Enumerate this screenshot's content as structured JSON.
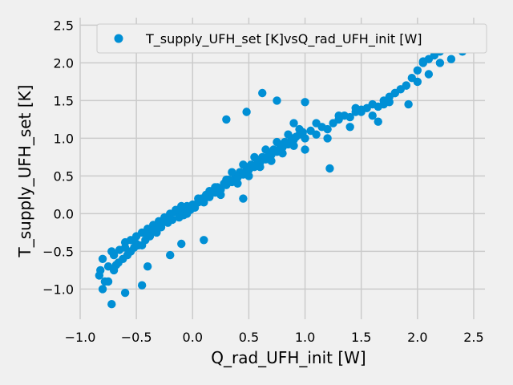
{
  "chart_data": {
    "type": "scatter",
    "title": "",
    "xlabel": "Q_rad_UFH_init [W]",
    "ylabel": "T_supply_UFH_set [K]",
    "xlim": [
      -1.0,
      2.6
    ],
    "ylim": [
      -1.4,
      2.6
    ],
    "xticks": [
      -1.0,
      -0.5,
      0.0,
      0.5,
      1.0,
      1.5,
      2.0,
      2.5
    ],
    "xtick_labels": [
      "−1.0",
      "−0.5",
      "0.0",
      "0.5",
      "1.0",
      "1.5",
      "2.0",
      "2.5"
    ],
    "yticks": [
      -1.0,
      -0.5,
      0.0,
      0.5,
      1.0,
      1.5,
      2.0,
      2.5
    ],
    "ytick_labels": [
      "−1.0",
      "−0.5",
      "0.0",
      "0.5",
      "1.0",
      "1.5",
      "2.0",
      "2.5"
    ],
    "grid": true,
    "legend_position": "top-right",
    "style": "fivethirtyeight",
    "colors": {
      "background": "#f0f0f0",
      "grid": "#cbcbcb",
      "marker": "#008fd5"
    },
    "series": [
      {
        "name": "T_supply_UFH_set [K]vsQ_rad_UFH_init [W]",
        "x": [
          -0.82,
          -0.8,
          -0.78,
          -0.83,
          -0.75,
          -0.72,
          -0.7,
          -0.68,
          -0.65,
          -0.62,
          -0.6,
          -0.58,
          -0.55,
          -0.52,
          -0.5,
          -0.48,
          -0.45,
          -0.42,
          -0.4,
          -0.38,
          -0.35,
          -0.32,
          -0.3,
          -0.28,
          -0.25,
          -0.22,
          -0.2,
          -0.18,
          -0.15,
          -0.12,
          -0.1,
          -0.08,
          -0.05,
          -0.02,
          0.0,
          0.02,
          0.05,
          0.08,
          0.1,
          0.12,
          0.15,
          0.18,
          0.2,
          0.22,
          0.25,
          0.28,
          0.3,
          0.32,
          0.35,
          0.38,
          0.4,
          0.42,
          0.45,
          0.48,
          0.5,
          0.52,
          0.55,
          0.58,
          0.6,
          0.62,
          0.65,
          0.68,
          0.7,
          0.72,
          0.75,
          0.78,
          0.8,
          0.82,
          0.85,
          0.88,
          0.9,
          0.92,
          0.95,
          0.98,
          1.0,
          1.05,
          1.1,
          1.15,
          1.2,
          1.25,
          1.3,
          1.35,
          1.4,
          1.45,
          1.5,
          1.55,
          1.6,
          1.65,
          1.7,
          1.75,
          1.8,
          1.85,
          1.9,
          1.95,
          2.0,
          2.05,
          2.1,
          2.15,
          2.2,
          2.25,
          2.3,
          2.35,
          2.4,
          2.45,
          2.48,
          -0.8,
          -0.75,
          -0.7,
          -0.72,
          -0.66,
          -0.6,
          -0.55,
          -0.5,
          -0.45,
          -0.4,
          -0.35,
          -0.3,
          -0.25,
          -0.2,
          -0.15,
          -0.1,
          -0.05,
          0.0,
          0.05,
          0.1,
          0.15,
          0.2,
          0.25,
          0.3,
          0.35,
          0.4,
          0.45,
          0.5,
          0.55,
          0.6,
          0.65,
          0.7,
          0.75,
          0.8,
          0.85,
          0.9,
          0.95,
          1.0,
          1.1,
          1.2,
          1.3,
          1.4,
          1.5,
          1.6,
          1.7,
          1.8,
          1.9,
          2.0,
          2.1,
          2.2,
          2.3,
          2.4,
          0.9,
          1.0,
          0.62,
          0.75,
          0.48,
          0.3,
          -0.45,
          -0.6,
          -0.4,
          -0.2,
          1.65,
          1.92,
          2.05,
          2.5,
          1.45,
          1.22,
          1.75,
          0.45,
          0.1,
          -0.1
        ],
        "y": [
          -0.75,
          -0.6,
          -0.9,
          -0.82,
          -0.7,
          -1.2,
          -0.55,
          -0.68,
          -0.48,
          -0.6,
          -0.38,
          -0.55,
          -0.35,
          -0.45,
          -0.3,
          -0.42,
          -0.25,
          -0.35,
          -0.2,
          -0.3,
          -0.15,
          -0.25,
          -0.1,
          -0.18,
          -0.05,
          -0.12,
          0.0,
          -0.08,
          0.02,
          -0.05,
          0.05,
          -0.02,
          0.1,
          0.05,
          0.12,
          0.08,
          0.15,
          0.2,
          0.18,
          0.25,
          0.22,
          0.3,
          0.28,
          0.35,
          0.32,
          0.4,
          0.38,
          0.45,
          0.42,
          0.5,
          0.48,
          0.55,
          0.52,
          0.6,
          0.58,
          0.65,
          0.62,
          0.7,
          0.68,
          0.75,
          0.72,
          0.8,
          0.78,
          0.85,
          0.82,
          0.9,
          0.88,
          0.95,
          0.92,
          1.0,
          0.98,
          1.02,
          1.05,
          1.08,
          1.0,
          1.1,
          1.05,
          1.15,
          1.12,
          1.2,
          1.25,
          1.3,
          1.28,
          1.35,
          1.38,
          1.4,
          1.45,
          1.42,
          1.5,
          1.55,
          1.6,
          1.65,
          1.7,
          1.8,
          1.9,
          2.0,
          2.05,
          2.1,
          2.15,
          2.2,
          2.25,
          2.28,
          2.3,
          2.35,
          2.4,
          -1.0,
          -0.9,
          -0.75,
          -0.5,
          -0.65,
          -0.45,
          -0.5,
          -0.4,
          -0.42,
          -0.28,
          -0.22,
          -0.18,
          -0.1,
          -0.08,
          0.05,
          0.1,
          0.0,
          0.08,
          0.2,
          0.15,
          0.3,
          0.35,
          0.25,
          0.45,
          0.55,
          0.4,
          0.65,
          0.5,
          0.75,
          0.62,
          0.85,
          0.7,
          0.95,
          0.8,
          1.05,
          0.9,
          1.12,
          0.85,
          1.2,
          1.0,
          1.3,
          1.15,
          1.35,
          1.3,
          1.45,
          1.6,
          1.7,
          1.75,
          1.85,
          2.0,
          2.05,
          2.15,
          1.2,
          1.48,
          1.6,
          1.5,
          1.35,
          1.25,
          -0.95,
          -1.05,
          -0.7,
          -0.55,
          1.22,
          1.45,
          2.02,
          2.42,
          1.4,
          0.6,
          1.48,
          0.2,
          -0.35,
          -0.4
        ]
      }
    ]
  }
}
